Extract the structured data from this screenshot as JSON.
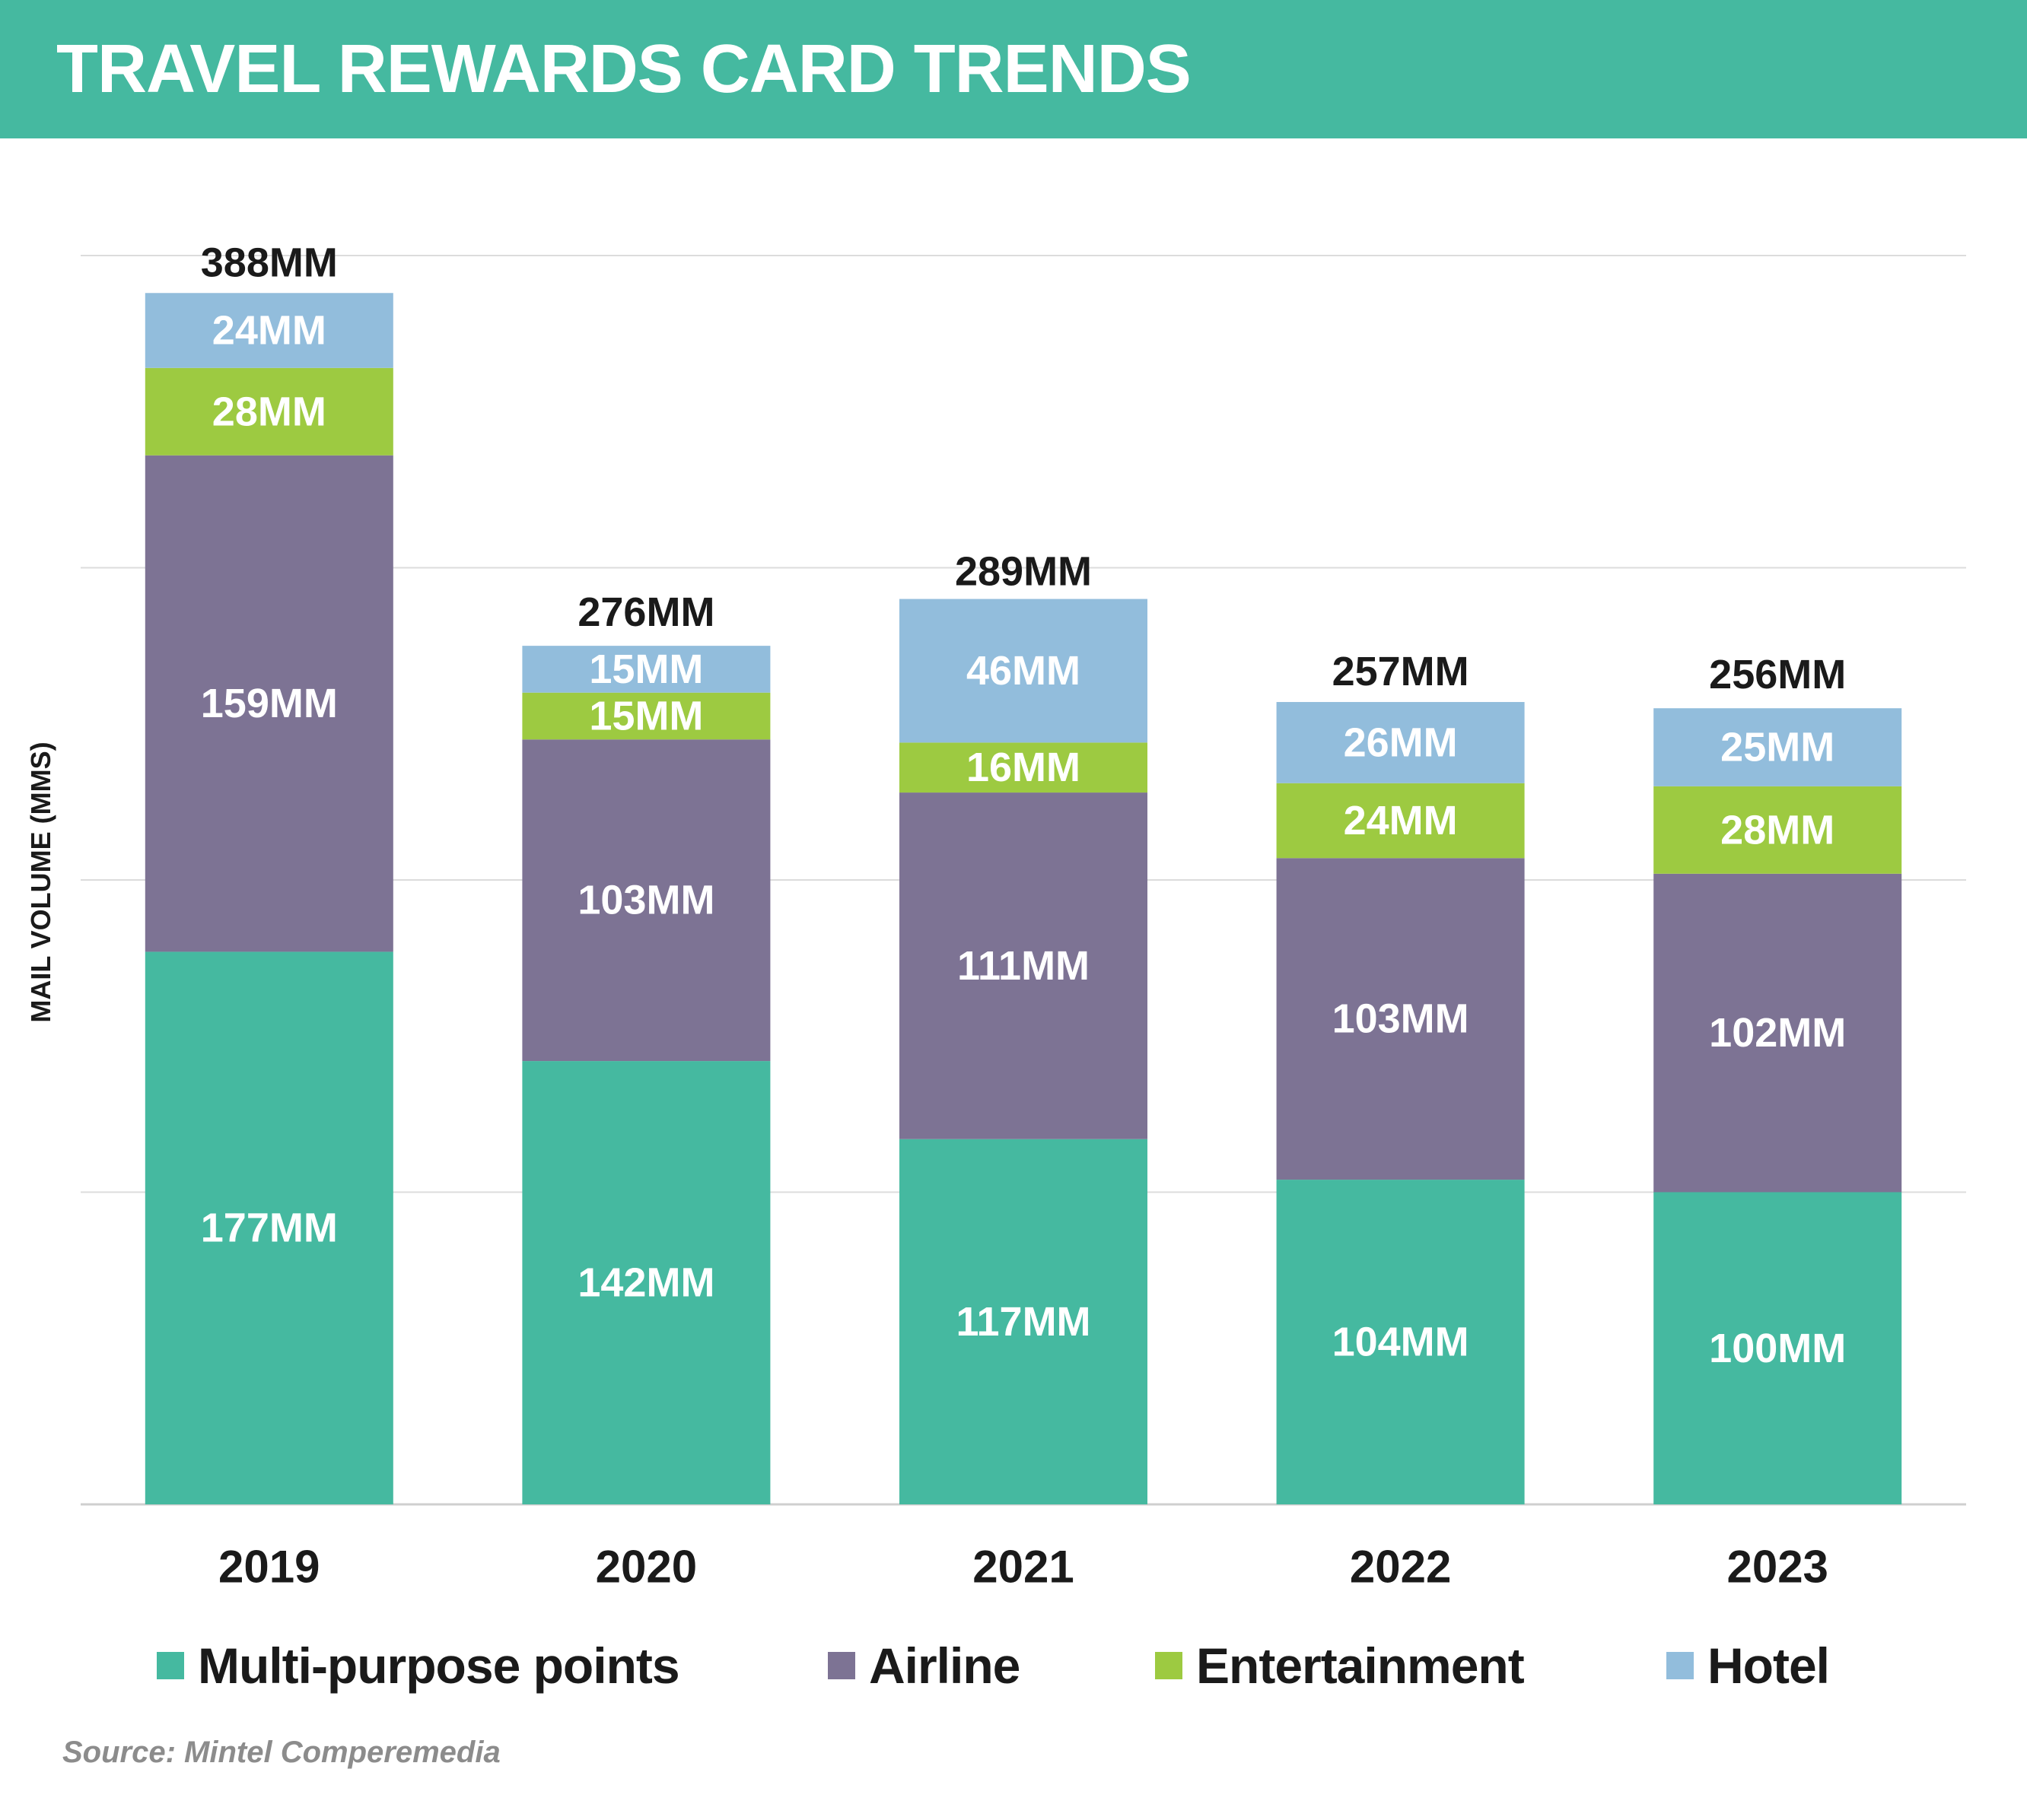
{
  "header": {
    "title": "TRAVEL REWARDS CARD TRENDS",
    "bg_color": "#45b9a0"
  },
  "source": "Source: Mintel Comperemedia",
  "chart_data": {
    "type": "bar",
    "stacked": true,
    "title": "TRAVEL REWARDS CARD TRENDS",
    "xlabel": "",
    "ylabel": "MAIL VOLUME (MMS)",
    "ylim": [
      0,
      400
    ],
    "grid": true,
    "legend_position": "bottom",
    "categories": [
      "2019",
      "2020",
      "2021",
      "2022",
      "2023"
    ],
    "series": [
      {
        "name": "Multi-purpose points",
        "color": "#45b9a0",
        "values": [
          177,
          142,
          117,
          104,
          100
        ],
        "labels": [
          "177MM",
          "142MM",
          "117MM",
          "104MM",
          "100MM"
        ]
      },
      {
        "name": "Airline",
        "color": "#7d7394",
        "values": [
          159,
          103,
          111,
          103,
          102
        ],
        "labels": [
          "159MM",
          "103MM",
          "111MM",
          "103MM",
          "102MM"
        ]
      },
      {
        "name": "Entertainment",
        "color": "#9dca41",
        "values": [
          28,
          15,
          16,
          24,
          28
        ],
        "labels": [
          "28MM",
          "15MM",
          "16MM",
          "24MM",
          "28MM"
        ]
      },
      {
        "name": "Hotel",
        "color": "#92bddc",
        "values": [
          24,
          15,
          46,
          26,
          25
        ],
        "labels": [
          "24MM",
          "15MM",
          "46MM",
          "26MM",
          "25MM"
        ]
      }
    ],
    "totals": [
      388,
      276,
      289,
      257,
      256
    ],
    "total_labels": [
      "388MM",
      "276MM",
      "289MM",
      "257MM",
      "256MM"
    ]
  }
}
